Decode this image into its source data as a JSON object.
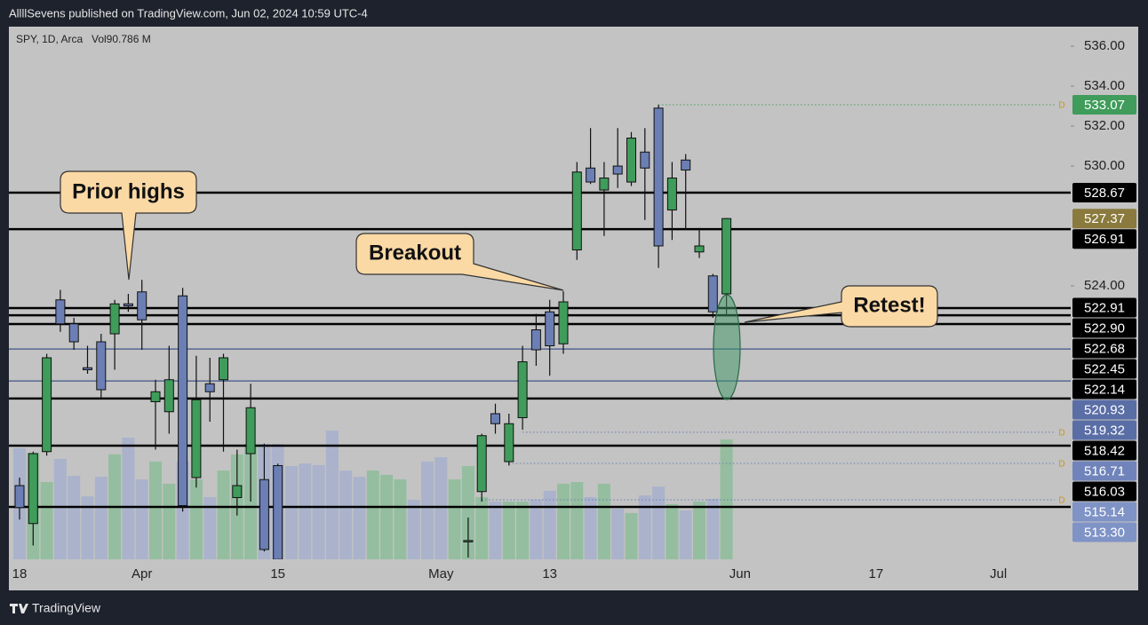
{
  "header": {
    "publisher": "AllllSevens published on TradingView.com, Jun 02, 2024 10:59 UTC-4"
  },
  "footer": {
    "brand": "TradingView"
  },
  "chart_data": {
    "type": "candlestick",
    "legend_symbol": "SPY, 1D, Arca",
    "legend_volume": "Vol90.786 M",
    "up_color": "#3f9c5a",
    "down_color": "#6b7fb4",
    "volume_up_color": "rgba(110,185,130,0.55)",
    "volume_down_color": "rgba(150,165,210,0.55)",
    "categories": [
      "18",
      null,
      null,
      null,
      null,
      null,
      null,
      null,
      null,
      "Apr",
      null,
      null,
      null,
      null,
      null,
      null,
      null,
      null,
      null,
      "15",
      null,
      null,
      null,
      null,
      null,
      null,
      null,
      null,
      null,
      null,
      null,
      "May",
      null,
      null,
      null,
      null,
      null,
      null,
      null,
      "13",
      null,
      null,
      null,
      null,
      null,
      null,
      null,
      null,
      null,
      null,
      null,
      null,
      null,
      "Jun",
      null,
      null,
      null,
      null,
      null,
      null,
      null,
      null,
      null,
      "17",
      null,
      null,
      null,
      null,
      null,
      null,
      null,
      null,
      "Jul",
      null,
      null,
      null,
      null,
      null
    ],
    "open": [
      514.0,
      512.1,
      515.7,
      523.3,
      522.1,
      519.9,
      521.2,
      521.6,
      523.1,
      523.7,
      518.2,
      517.7,
      523.5,
      514.4,
      519.1,
      519.3,
      513.4,
      515.6,
      514.3,
      515.0,
      null,
      null,
      null,
      null,
      null,
      null,
      null,
      null,
      null,
      null,
      null,
      null,
      null,
      511.2,
      513.7,
      517.6,
      515.2,
      517.4,
      521.8,
      522.7,
      521.1,
      525.8,
      529.9,
      528.8,
      530.0,
      529.2,
      530.7,
      532.9,
      527.8,
      530.3,
      525.7,
      524.5,
      523.6,
      null,
      null,
      null,
      null,
      null,
      null,
      null,
      null,
      null,
      null,
      null,
      null,
      null,
      null,
      null,
      null,
      null,
      null,
      null,
      null,
      null,
      null,
      null,
      null,
      null
    ],
    "high": [
      514.4,
      515.7,
      520.6,
      523.8,
      522.4,
      521.0,
      521.6,
      523.3,
      523.6,
      524.3,
      519.3,
      521.0,
      523.9,
      520.5,
      520.4,
      520.6,
      515.8,
      519.1,
      516.1,
      515.1,
      null,
      null,
      null,
      null,
      null,
      null,
      null,
      null,
      null,
      null,
      null,
      null,
      null,
      512.4,
      516.6,
      518.1,
      517.6,
      521.0,
      522.6,
      523.3,
      523.73,
      530.2,
      531.9,
      530.2,
      531.9,
      531.7,
      531.9,
      533.07,
      530.2,
      530.6,
      526.9,
      524.6,
      527.4,
      null,
      null,
      null,
      null,
      null,
      null,
      null,
      null,
      null,
      null,
      null,
      null,
      null,
      null,
      null,
      null,
      null,
      null,
      null,
      null,
      null,
      null,
      null,
      null,
      null
    ],
    "low": [
      512.3,
      511.0,
      515.5,
      521.7,
      520.8,
      519.6,
      518.4,
      519.8,
      522.7,
      520.8,
      515.8,
      516.6,
      512.7,
      513.9,
      517.2,
      515.7,
      512.5,
      513.2,
      510.7,
      510.0,
      null,
      null,
      null,
      null,
      null,
      null,
      null,
      null,
      null,
      null,
      null,
      null,
      null,
      510.4,
      513.2,
      516.6,
      515.0,
      516.8,
      520.0,
      519.5,
      520.6,
      525.3,
      529.1,
      526.5,
      528.9,
      529.0,
      527.3,
      524.9,
      526.3,
      526.8,
      525.4,
      522.4,
      522.5,
      null,
      null,
      null,
      null,
      null,
      null,
      null,
      null,
      null,
      null,
      null,
      null,
      null,
      null,
      null,
      null,
      null,
      null,
      null,
      null,
      null,
      null,
      null,
      null,
      null
    ],
    "close": [
      512.9,
      515.6,
      520.4,
      522.1,
      521.2,
      519.8,
      518.8,
      523.1,
      523.0,
      522.3,
      518.7,
      519.3,
      513.0,
      518.3,
      518.7,
      520.4,
      514.0,
      517.9,
      510.8,
      510.3,
      null,
      null,
      null,
      null,
      null,
      null,
      null,
      null,
      null,
      null,
      null,
      null,
      null,
      511.25,
      516.5,
      517.1,
      517.1,
      520.2,
      520.8,
      521.0,
      523.2,
      529.7,
      529.2,
      529.4,
      529.6,
      531.4,
      529.9,
      526.0,
      529.4,
      529.8,
      526.0,
      522.7,
      527.37,
      null,
      null,
      null,
      null,
      null,
      null,
      null,
      null,
      null,
      null,
      null,
      null,
      null,
      null,
      null,
      null,
      null,
      null,
      null,
      null,
      null,
      null,
      null,
      null,
      null
    ],
    "volume": [
      84.1,
      80.7,
      58.5,
      76.0,
      63.2,
      47.7,
      62.5,
      79.4,
      92.1,
      60.5,
      74.0,
      57.2,
      74.0,
      60.5,
      47.1,
      67.2,
      79.4,
      87.4,
      87.4,
      87.4,
      70.6,
      72.6,
      71.3,
      97.5,
      67.2,
      62.5,
      67.2,
      63.9,
      60.5,
      45.1,
      74.0,
      77.3,
      60.5,
      70.6,
      47.1,
      43.7,
      43.7,
      43.7,
      45.1,
      51.8,
      57.2,
      58.5,
      47.1,
      57.2,
      38.3,
      35.0,
      48.4,
      55.1,
      41.7,
      37.0,
      43.7,
      45.7,
      90.786,
      null,
      null,
      null,
      null,
      null,
      null,
      null,
      null,
      null,
      null,
      null,
      null,
      null,
      null,
      null,
      null,
      null,
      null,
      null,
      null,
      null,
      null,
      null,
      null,
      null
    ],
    "volume_direction": [
      "down",
      "up",
      "up",
      "down",
      "down",
      "down",
      "down",
      "up",
      "down",
      "down",
      "up",
      "up",
      "down",
      "up",
      "down",
      "up",
      "up",
      "up",
      "down",
      "down",
      "down",
      "down",
      "down",
      "down",
      "down",
      "down",
      "up",
      "up",
      "up",
      "down",
      "down",
      "down",
      "up",
      "up",
      "up",
      "down",
      "up",
      "up",
      "down",
      "down",
      "up",
      "up",
      "down",
      "up",
      "down",
      "up",
      "down",
      "down",
      "up",
      "down",
      "up",
      "down",
      "up",
      null,
      null,
      null,
      null,
      null,
      null,
      null,
      null,
      null,
      null,
      null,
      null,
      null,
      null,
      null,
      null,
      null,
      null,
      null,
      null,
      null,
      null,
      null,
      null,
      null
    ],
    "ylim": [
      510.31,
      536.98
    ],
    "yticks": [
      {
        "value": 536,
        "label": "536.00"
      },
      {
        "value": 534,
        "label": "534.00"
      },
      {
        "value": 532,
        "label": "532.00"
      },
      {
        "value": 530,
        "label": "530.00"
      },
      {
        "value": 524,
        "label": "524.00"
      }
    ],
    "levels": [
      {
        "value": 528.67,
        "color": "#000000",
        "width": 2.5
      },
      {
        "value": 526.84,
        "color": "#000000",
        "width": 2.5
      },
      {
        "value": 522.89,
        "color": "#000000",
        "width": 2.5
      },
      {
        "value": 522.53,
        "color": "#000000",
        "width": 2.5
      },
      {
        "value": 522.09,
        "color": "#000000",
        "width": 2.5
      },
      {
        "value": 520.84,
        "color": "#3f568a",
        "width": 1.2
      },
      {
        "value": 519.24,
        "color": "#3f568a",
        "width": 1.2
      },
      {
        "value": 518.36,
        "color": "#000000",
        "width": 2.5
      },
      {
        "value": 516.0,
        "color": "#000000",
        "width": 2.5
      },
      {
        "value": 512.93,
        "color": "#000000",
        "width": 2.5
      }
    ],
    "dotted_levels": [
      {
        "value": 533.07,
        "from": 47,
        "color": "#3f9c5a",
        "label": "D"
      },
      {
        "value": 516.67,
        "from": 37,
        "color": "#6b7fb4",
        "label": "D"
      },
      {
        "value": 515.11,
        "from": 36,
        "color": "#6b7fb4",
        "label": "D"
      },
      {
        "value": 513.29,
        "from": 34,
        "color": "#6b7fb4",
        "label": "D"
      }
    ],
    "price_labels": [
      {
        "value": 533.07,
        "label": "533.07",
        "bg": "#3f9c5a",
        "fg": "#ffffff"
      },
      {
        "value": 528.67,
        "label": "528.67",
        "bg": "#000000",
        "fg": "#ffffff"
      },
      {
        "value": 527.37,
        "label": "527.37",
        "bg": "#8a7a3e",
        "fg": "#ffffff"
      },
      {
        "value": 526.91,
        "label": "526.91",
        "bg": "#000000",
        "fg": "#ffffff"
      },
      {
        "value": 522.91,
        "label": "522.91",
        "bg": "#000000",
        "fg": "#ffffff"
      },
      {
        "value": 522.9,
        "label": "522.90",
        "bg": "#000000",
        "fg": "#ffffff"
      },
      {
        "value": 522.68,
        "label": "522.68",
        "bg": "#000000",
        "fg": "#ffffff"
      },
      {
        "value": 522.45,
        "label": "522.45",
        "bg": "#000000",
        "fg": "#ffffff"
      },
      {
        "value": 522.14,
        "label": "522.14",
        "bg": "#000000",
        "fg": "#ffffff"
      },
      {
        "value": 520.93,
        "label": "520.93",
        "bg": "#5a6ea6",
        "fg": "#ffffff"
      },
      {
        "value": 519.32,
        "label": "519.32",
        "bg": "#5a6ea6",
        "fg": "#ffffff"
      },
      {
        "value": 518.42,
        "label": "518.42",
        "bg": "#000000",
        "fg": "#ffffff"
      },
      {
        "value": 516.71,
        "label": "516.71",
        "bg": "#7084bb",
        "fg": "#ffffff"
      },
      {
        "value": 516.03,
        "label": "516.03",
        "bg": "#000000",
        "fg": "#ffffff"
      },
      {
        "value": 515.14,
        "label": "515.14",
        "bg": "#7f93c6",
        "fg": "#ffffff"
      },
      {
        "value": 513.3,
        "label": "513.30",
        "bg": "#7f93c6",
        "fg": "#ffffff"
      }
    ],
    "annotations": [
      "Prior highs",
      "Breakout",
      "Retest!"
    ]
  }
}
